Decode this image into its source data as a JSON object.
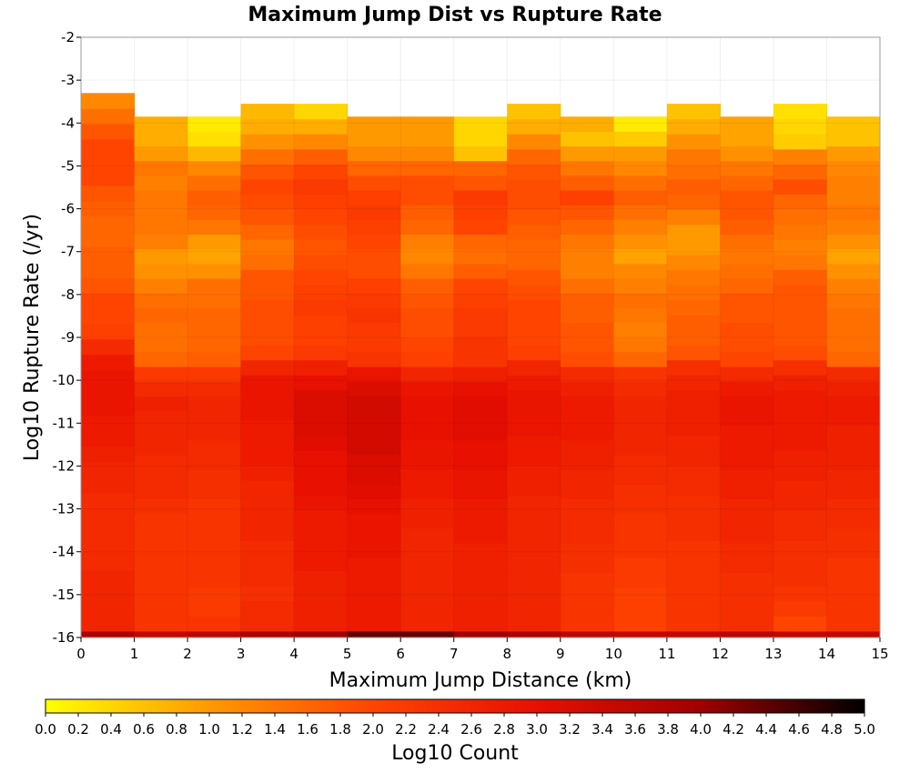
{
  "chart_data": {
    "type": "heatmap",
    "title": "Maximum Jump Dist vs Rupture Rate",
    "xlabel": "Maximum Jump Distance (km)",
    "ylabel": "Log10 Rupture Rate (/yr)",
    "xlim": [
      0,
      15
    ],
    "ylim": [
      -16,
      -2
    ],
    "x_ticks": [
      "0",
      "1",
      "2",
      "3",
      "4",
      "5",
      "6",
      "7",
      "8",
      "9",
      "10",
      "11",
      "12",
      "13",
      "14",
      "15"
    ],
    "y_ticks": [
      "-2",
      "-3",
      "-4",
      "-5",
      "-6",
      "-7",
      "-8",
      "-9",
      "-10",
      "-11",
      "-12",
      "-13",
      "-14",
      "-15",
      "-16"
    ],
    "grid": true,
    "colorbar": {
      "label": "Log10 Count",
      "range": [
        0,
        5
      ],
      "ticks": [
        "0.0",
        "0.2",
        "0.4",
        "0.6",
        "0.8",
        "1.0",
        "1.2",
        "1.4",
        "1.6",
        "1.8",
        "2.0",
        "2.2",
        "2.4",
        "2.6",
        "2.8",
        "3.0",
        "3.2",
        "3.4",
        "3.6",
        "3.8",
        "4.0",
        "4.2",
        "4.4",
        "4.6",
        "4.8",
        "5.0"
      ],
      "colors": [
        "#ffff00",
        "#ff9900",
        "#ff4400",
        "#e81000",
        "#a00000",
        "#000000"
      ]
    },
    "columns": [
      {
        "x": 0,
        "top": -3.3,
        "values": [
          3.8,
          2.6,
          2.6,
          2.6,
          2.6,
          2.5,
          2.5,
          2.5,
          2.5,
          2.5,
          2.6,
          2.6,
          2.7,
          2.8,
          2.8,
          2.9,
          2.9,
          2.9,
          2.8,
          2.5,
          2.1,
          2.0,
          2.0,
          1.8,
          1.7,
          1.7,
          1.6,
          1.6,
          1.7,
          1.8,
          2.0,
          2.0,
          2.0,
          1.8,
          1.5,
          1.2
        ]
      },
      {
        "x": 1,
        "top": -3.85,
        "values": [
          3.5,
          2.3,
          2.3,
          2.3,
          2.3,
          2.3,
          2.3,
          2.3,
          2.3,
          2.4,
          2.5,
          2.5,
          2.5,
          2.6,
          2.6,
          2.6,
          2.7,
          2.5,
          2.2,
          1.6,
          1.5,
          1.5,
          1.6,
          1.5,
          1.3,
          1.1,
          1.0,
          1.3,
          1.4,
          1.4,
          1.4,
          1.3,
          1.4,
          1.0,
          0.8,
          0.8
        ]
      },
      {
        "x": 2,
        "top": -3.85,
        "values": [
          3.6,
          2.3,
          2.2,
          2.2,
          2.3,
          2.3,
          2.3,
          2.3,
          2.3,
          2.3,
          2.4,
          2.4,
          2.5,
          2.5,
          2.6,
          2.6,
          2.6,
          2.5,
          2.2,
          1.7,
          1.6,
          1.6,
          1.6,
          1.5,
          1.5,
          1.1,
          0.9,
          1.0,
          1.4,
          1.6,
          1.7,
          1.5,
          1.2,
          0.7,
          0.3,
          0.2
        ]
      },
      {
        "x": 3,
        "top": -3.55,
        "values": [
          3.8,
          2.5,
          2.5,
          2.4,
          2.5,
          2.5,
          2.5,
          2.6,
          2.6,
          2.6,
          2.6,
          2.7,
          2.8,
          2.8,
          2.8,
          2.9,
          2.9,
          2.9,
          2.6,
          2.0,
          1.9,
          1.9,
          1.9,
          1.8,
          1.8,
          1.5,
          1.4,
          1.6,
          1.8,
          1.9,
          2.0,
          1.8,
          1.5,
          1.1,
          0.8,
          0.7
        ]
      },
      {
        "x": 4,
        "top": -3.55,
        "values": [
          4.0,
          2.7,
          2.7,
          2.7,
          2.7,
          2.8,
          2.8,
          2.8,
          2.8,
          2.9,
          3.0,
          3.0,
          3.0,
          3.1,
          3.2,
          3.2,
          3.2,
          3.0,
          2.7,
          2.2,
          2.1,
          2.1,
          2.2,
          2.1,
          2.0,
          1.9,
          1.8,
          1.9,
          2.0,
          2.1,
          2.2,
          2.0,
          1.7,
          1.2,
          0.8,
          0.4
        ]
      },
      {
        "x": 5,
        "top": -3.85,
        "values": [
          4.4,
          2.8,
          2.8,
          2.8,
          2.8,
          2.8,
          2.9,
          2.9,
          2.9,
          3.0,
          3.1,
          3.2,
          3.2,
          3.3,
          3.3,
          3.3,
          3.3,
          3.2,
          2.9,
          2.3,
          2.2,
          2.2,
          2.3,
          2.2,
          2.1,
          1.9,
          1.9,
          2.0,
          2.1,
          2.2,
          2.1,
          1.9,
          1.6,
          1.2,
          1.0,
          1.0
        ]
      },
      {
        "x": 6,
        "top": -3.85,
        "values": [
          4.4,
          2.6,
          2.6,
          2.6,
          2.6,
          2.6,
          2.6,
          2.6,
          2.7,
          2.7,
          2.8,
          2.8,
          2.9,
          2.9,
          3.0,
          3.0,
          3.0,
          2.9,
          2.6,
          2.1,
          2.0,
          1.9,
          1.9,
          1.8,
          1.7,
          1.4,
          1.2,
          1.3,
          1.6,
          1.7,
          1.9,
          1.9,
          1.6,
          1.2,
          1.0,
          1.0
        ]
      },
      {
        "x": 7,
        "top": -3.85,
        "values": [
          4.0,
          2.7,
          2.7,
          2.7,
          2.7,
          2.7,
          2.7,
          2.8,
          2.8,
          2.8,
          2.9,
          2.9,
          3.0,
          3.0,
          3.1,
          3.1,
          3.1,
          3.0,
          2.7,
          2.3,
          2.3,
          2.2,
          2.2,
          2.1,
          2.0,
          1.7,
          1.5,
          1.6,
          2.0,
          2.1,
          2.2,
          1.8,
          1.6,
          0.6,
          0.4,
          0.4
        ]
      },
      {
        "x": 8,
        "top": -3.55,
        "values": [
          3.8,
          2.6,
          2.6,
          2.6,
          2.6,
          2.6,
          2.6,
          2.6,
          2.6,
          2.6,
          2.7,
          2.7,
          2.8,
          2.8,
          2.9,
          2.9,
          2.9,
          2.8,
          2.6,
          2.1,
          2.0,
          2.0,
          2.0,
          1.9,
          1.8,
          1.6,
          1.6,
          1.7,
          1.8,
          1.9,
          1.9,
          1.8,
          1.6,
          1.2,
          0.8,
          0.6
        ]
      },
      {
        "x": 9,
        "top": -3.85,
        "values": [
          3.6,
          2.3,
          2.3,
          2.3,
          2.3,
          2.4,
          2.4,
          2.5,
          2.5,
          2.5,
          2.6,
          2.6,
          2.7,
          2.7,
          2.8,
          2.8,
          2.8,
          2.7,
          2.5,
          1.9,
          1.8,
          1.8,
          1.7,
          1.7,
          1.5,
          1.3,
          1.3,
          1.4,
          1.6,
          1.8,
          2.1,
          1.7,
          1.4,
          1.0,
          0.6,
          0.8
        ]
      },
      {
        "x": 10,
        "top": -3.85,
        "values": [
          3.5,
          2.1,
          2.1,
          2.1,
          2.2,
          2.2,
          2.3,
          2.3,
          2.3,
          2.4,
          2.4,
          2.5,
          2.5,
          2.6,
          2.6,
          2.6,
          2.6,
          2.5,
          2.3,
          1.6,
          1.4,
          1.3,
          1.4,
          1.5,
          1.3,
          1.2,
          0.9,
          1.1,
          1.3,
          1.5,
          1.7,
          1.5,
          1.2,
          1.0,
          0.5,
          0.2
        ]
      },
      {
        "x": 11,
        "top": -3.55,
        "values": [
          3.5,
          2.3,
          2.3,
          2.3,
          2.3,
          2.3,
          2.3,
          2.4,
          2.4,
          2.4,
          2.5,
          2.5,
          2.6,
          2.6,
          2.7,
          2.7,
          2.7,
          2.6,
          2.4,
          1.8,
          1.7,
          1.7,
          1.6,
          1.5,
          1.4,
          1.2,
          1.0,
          1.0,
          1.3,
          1.6,
          1.7,
          1.5,
          1.4,
          1.1,
          0.8,
          0.6
        ]
      },
      {
        "x": 12,
        "top": -3.85,
        "values": [
          3.6,
          2.4,
          2.4,
          2.4,
          2.4,
          2.5,
          2.5,
          2.6,
          2.6,
          2.6,
          2.7,
          2.7,
          2.8,
          2.8,
          2.8,
          2.9,
          2.9,
          2.8,
          2.5,
          2.0,
          1.9,
          1.9,
          1.8,
          1.8,
          1.6,
          1.5,
          1.4,
          1.5,
          1.7,
          1.8,
          1.8,
          1.6,
          1.4,
          1.1,
          0.9,
          0.9
        ]
      },
      {
        "x": 13,
        "top": -3.55,
        "values": [
          3.5,
          2.0,
          2.2,
          2.3,
          2.4,
          2.4,
          2.4,
          2.5,
          2.5,
          2.6,
          2.6,
          2.7,
          2.7,
          2.8,
          2.8,
          2.8,
          2.8,
          2.7,
          2.4,
          1.9,
          1.8,
          1.8,
          1.8,
          1.8,
          1.7,
          1.4,
          1.3,
          1.4,
          1.5,
          1.6,
          1.9,
          1.6,
          1.3,
          0.5,
          0.4,
          0.3
        ]
      },
      {
        "x": 14,
        "top": -3.85,
        "values": [
          3.5,
          2.3,
          2.3,
          2.3,
          2.3,
          2.3,
          2.4,
          2.4,
          2.5,
          2.5,
          2.6,
          2.6,
          2.7,
          2.7,
          2.7,
          2.8,
          2.8,
          2.7,
          2.5,
          1.6,
          1.5,
          1.5,
          1.5,
          1.4,
          1.3,
          1.1,
          0.9,
          1.1,
          1.3,
          1.4,
          1.3,
          1.3,
          1.2,
          1.0,
          0.6,
          0.6
        ]
      }
    ]
  }
}
